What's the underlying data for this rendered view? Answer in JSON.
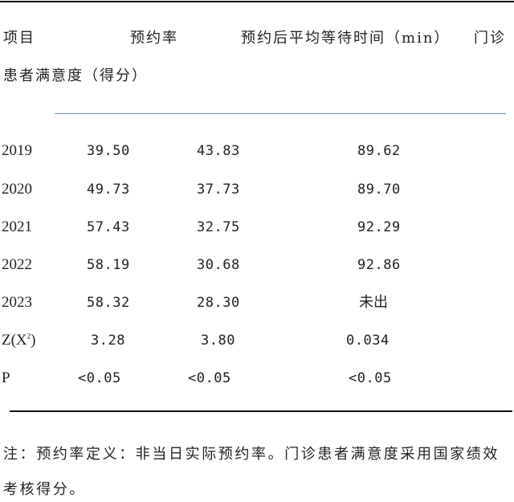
{
  "header": {
    "col_item": "项目",
    "col_rate": "预约率",
    "col_wait": "预约后平均等待时间（min）",
    "col_sat_line1": "门诊",
    "col_sat_line2": "患者满意度（得分）"
  },
  "rows": [
    {
      "label": "2019",
      "rate": "39.50",
      "wait": "43.83",
      "sat": "89.62"
    },
    {
      "label": "2020",
      "rate": "49.73",
      "wait": "37.73",
      "sat": "89.70"
    },
    {
      "label": "2021",
      "rate": "57.43",
      "wait": "32.75",
      "sat": "92.29"
    },
    {
      "label": "2022",
      "rate": "58.19",
      "wait": "30.68",
      "sat": "92.86"
    },
    {
      "label": "2023",
      "rate": "58.32",
      "wait": "28.30",
      "sat": "未出"
    },
    {
      "label": "Z(X",
      "label_sup": "2",
      "label_end": ")",
      "rate": "3.28",
      "wait": "3.80",
      "sat": "0.034"
    },
    {
      "label": "P",
      "rate": "<0.05",
      "wait": "<0.05",
      "sat": "<0.05"
    }
  ],
  "note": {
    "line1": "注：预约率定义：非当日实际预约率。门诊患者满意度采用国家绩效",
    "line2": "考核得分。"
  }
}
